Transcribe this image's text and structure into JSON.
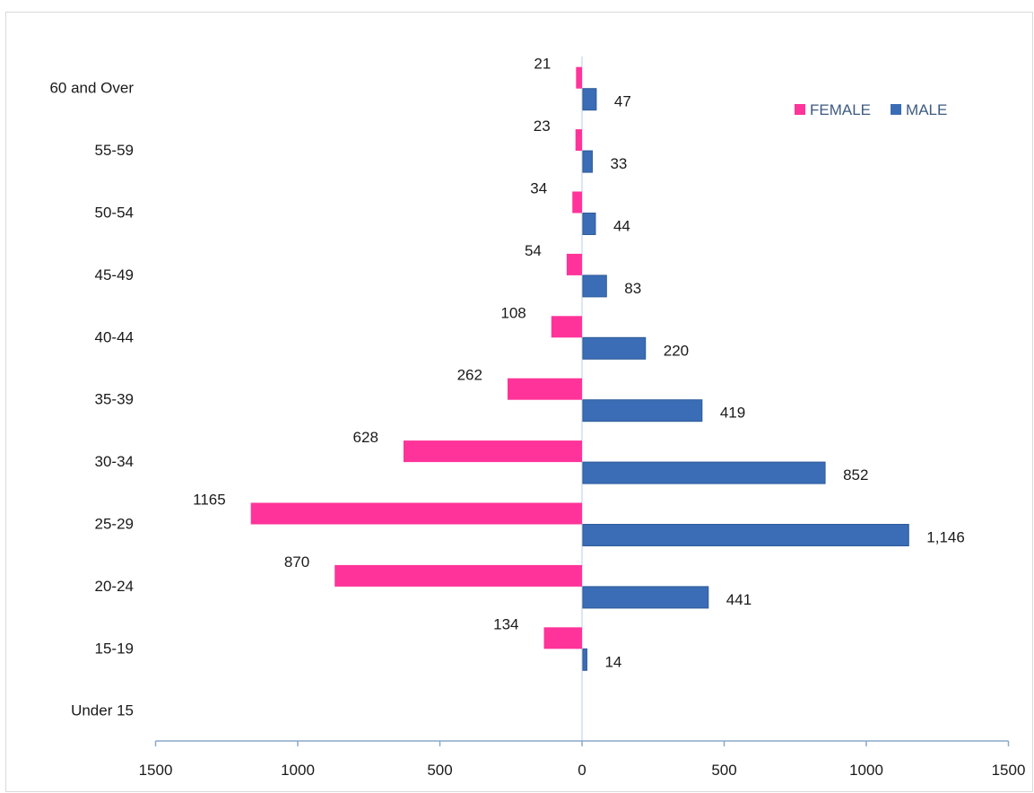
{
  "chart_data": {
    "type": "bar",
    "orientation": "horizontal",
    "categories": [
      "60 and Over",
      "55-59",
      "50-54",
      "45-49",
      "40-44",
      "35-39",
      "30-34",
      "25-29",
      "20-24",
      "15-19",
      "Under 15"
    ],
    "series": [
      {
        "name": "FEMALE",
        "color": "#ff3399",
        "values": [
          21,
          23,
          34,
          54,
          108,
          262,
          628,
          1165,
          870,
          134,
          null
        ],
        "labels": [
          "21",
          "23",
          "34",
          "54",
          "108",
          "262",
          "628",
          "1165",
          "870",
          "134",
          ""
        ]
      },
      {
        "name": "MALE",
        "color": "#3a6db5",
        "values": [
          47,
          33,
          44,
          83,
          220,
          419,
          852,
          1146,
          441,
          14,
          null
        ],
        "labels": [
          "47",
          "33",
          "44",
          "83",
          "220",
          "419",
          "852",
          "1,146",
          "441",
          "14",
          ""
        ]
      }
    ],
    "xticks": [
      "1500",
      "1000",
      "500",
      "0",
      "500",
      "1000",
      "1500"
    ],
    "xlim": [
      -1500,
      1500
    ],
    "legend_position": "top-right",
    "grid": false
  }
}
